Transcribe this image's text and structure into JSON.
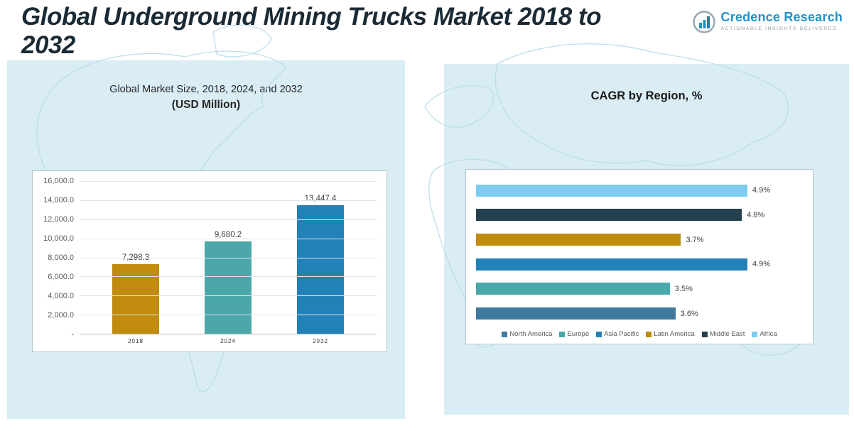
{
  "header": {
    "title_lines": [
      "Global Underground Mining Trucks Market 2018 to",
      "2032"
    ],
    "logo": {
      "brand": "Credence Research",
      "tagline": "Actionable Insights Delivered"
    }
  },
  "left_panel": {
    "subtitle_line1": "Global Market Size, 2018, 2024, and 2032",
    "subtitle_line2": "(USD Million)"
  },
  "right_panel": {
    "title": "CAGR by Region, %"
  },
  "chart_data": [
    {
      "type": "bar",
      "orientation": "vertical",
      "title": "Global Market Size, 2018, 2024, and 2032 (USD Million)",
      "categories": [
        "2018",
        "2024",
        "2032"
      ],
      "values": [
        7298.3,
        9680.2,
        13447.4
      ],
      "value_labels": [
        "7,298.3",
        "9,680.2",
        "13,447.4"
      ],
      "bar_colors": [
        "#C08B0E",
        "#4BA7A9",
        "#2381B8"
      ],
      "ylim": [
        0,
        16000
      ],
      "ytick_labels": [
        "16,000.0",
        "14,000.0",
        "12,000.0",
        "10,000.0",
        "8,000.0",
        "6,000.0",
        "4,000.0",
        "2,000.0",
        "-"
      ],
      "grid": true,
      "legend_position": "none"
    },
    {
      "type": "bar",
      "orientation": "horizontal",
      "title": "CAGR by Region, %",
      "categories": [
        "Africa",
        "Middle East",
        "Latin America",
        "Asia Pacific",
        "Europe",
        "North America"
      ],
      "values": [
        4.9,
        4.8,
        3.7,
        4.9,
        3.5,
        3.6
      ],
      "value_labels": [
        "4.9%",
        "4.8%",
        "3.7%",
        "4.9%",
        "3.5%",
        "3.6%"
      ],
      "bar_colors": [
        "#7DCBF0",
        "#24404F",
        "#C08B0E",
        "#2381B8",
        "#4BA7A9",
        "#3F7A9E"
      ],
      "xlim": [
        0,
        5.9
      ],
      "grid": false,
      "legend_position": "bottom",
      "legend": [
        {
          "label": "North America",
          "color": "#3F7A9E"
        },
        {
          "label": "Europe",
          "color": "#4BA7A9"
        },
        {
          "label": "Asia Pacific",
          "color": "#2381B8"
        },
        {
          "label": "Latin America",
          "color": "#C08B0E"
        },
        {
          "label": "Middle East",
          "color": "#24404F"
        },
        {
          "label": "Africa",
          "color": "#7DCBF0"
        }
      ]
    }
  ],
  "colors": {
    "panel_background": "#daedf5",
    "map_line": "#b7dcea",
    "title_text": "#1b2b36",
    "brand_blue": "#2193c8"
  }
}
